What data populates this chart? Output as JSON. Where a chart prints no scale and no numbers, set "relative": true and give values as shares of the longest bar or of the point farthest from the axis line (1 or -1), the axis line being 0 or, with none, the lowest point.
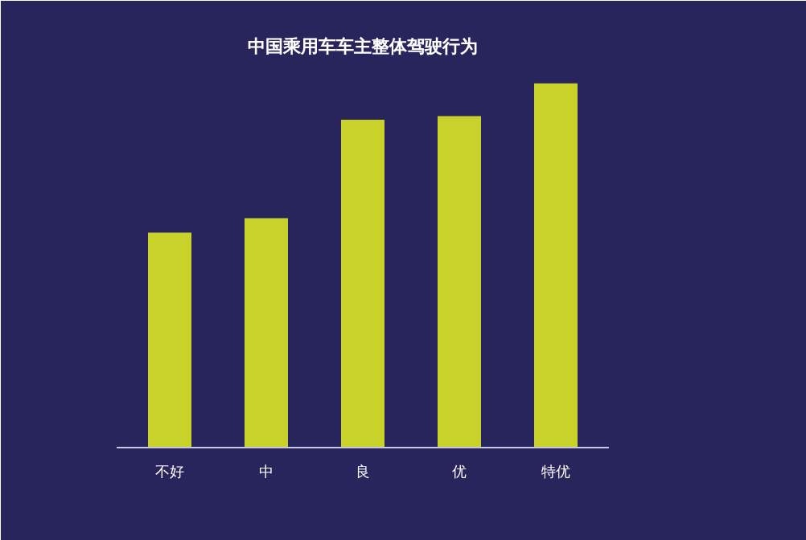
{
  "chart_data": {
    "type": "bar",
    "title": "中国乘用车车主整体驾驶行为",
    "categories": [
      "不好",
      "中",
      "良",
      "优",
      "特优"
    ],
    "values": [
      0.59,
      0.63,
      0.9,
      0.91,
      1
    ],
    "color": "#c9d12b",
    "relative": true,
    "grid": false
  }
}
